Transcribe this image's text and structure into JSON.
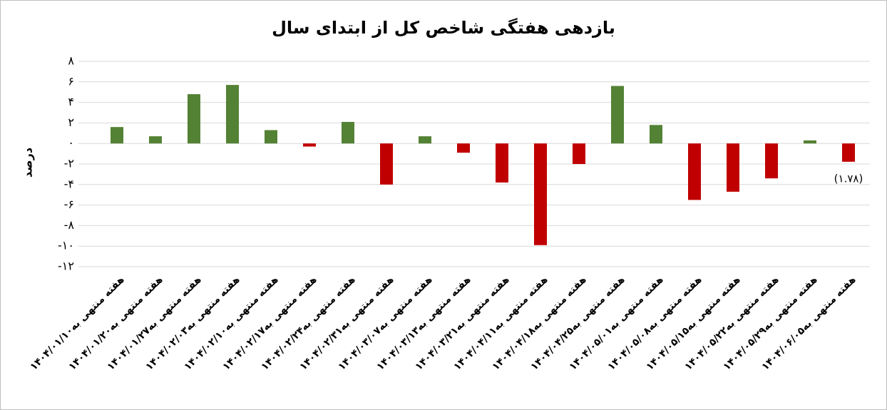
{
  "chart_data": {
    "type": "bar",
    "title": "بازدهی هفتگی شاخص کل از ابتدای سال",
    "y_label": "درصد",
    "categories": [
      "هفته منتهی به۱۴۰۴/۰۱/۱۰",
      "هفته منتهی به۱۴۰۴/۰۱/۲۰",
      "هفته منتهی به۱۴۰۴/۰۱/۲۷",
      "هفته منتهی به۱۴۰۴/۰۲/۰۳",
      "هفته منتهی به۱۴۰۴/۰۲/۱۰",
      "هفته منتهی به۱۴۰۴/۰۲/۱۷",
      "هفته منتهی به۱۴۰۴/۰۲/۲۴",
      "هفته منتهی به۱۴۰۴/۰۲/۳۱",
      "هفته منتهی به۱۴۰۴/۰۳/۰۷",
      "هفته منتهی به۱۴۰۴/۰۳/۱۳",
      "هفته منتهی به۱۴۰۴/۰۳/۲۱",
      "هفته منتهی به۱۴۰۴/۰۴/۱۱",
      "هفته منتهی به۱۴۰۴/۰۴/۱۸",
      "هفته منتهی به۱۴۰۴/۰۴/۲۵",
      "هفته منتهی به۱۴۰۴/۰۵/۰۱",
      "هفته منتهی به۱۴۰۴/۰۵/۰۸",
      "هفته منتهی به۱۴۰۴/۰۵/۱۵",
      "هفته منتهی به۱۴۰۴/۰۵/۲۲",
      "هفته منتهی به۱۴۰۴/۰۵/۲۹",
      "هفته منتهی به۱۴۰۴/۰۶/۰۵"
    ],
    "values": [
      1.6,
      0.7,
      4.8,
      5.7,
      1.3,
      -0.3,
      2.1,
      -4.0,
      0.7,
      -0.9,
      -3.8,
      -9.9,
      -2.0,
      5.6,
      1.8,
      -5.5,
      -4.7,
      -3.4,
      0.3,
      -1.78
    ],
    "value_labels": [
      null,
      null,
      null,
      null,
      null,
      null,
      null,
      null,
      null,
      null,
      null,
      null,
      null,
      null,
      null,
      null,
      null,
      null,
      null,
      "(۱.۷۸)"
    ],
    "positive_color": "#548235",
    "negative_color": "#c00000",
    "ylim": [
      -12,
      8
    ],
    "yticks": [
      {
        "value": -12,
        "label": "-۱۲"
      },
      {
        "value": -10,
        "label": "-۱۰"
      },
      {
        "value": -8,
        "label": "-۸"
      },
      {
        "value": -6,
        "label": "-۶"
      },
      {
        "value": -4,
        "label": "-۴"
      },
      {
        "value": -2,
        "label": "-۲"
      },
      {
        "value": 0,
        "label": "۰"
      },
      {
        "value": 2,
        "label": "۲"
      },
      {
        "value": 4,
        "label": "۴"
      },
      {
        "value": 6,
        "label": "۶"
      },
      {
        "value": 8,
        "label": "۸"
      }
    ],
    "grid": true
  }
}
